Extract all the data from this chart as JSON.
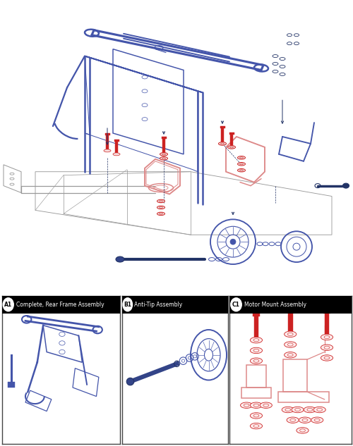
{
  "bg_color": "#ffffff",
  "blue": "#4455aa",
  "blue_light": "#6677bb",
  "red": "#cc2222",
  "salmon": "#dd8888",
  "dark_navy": "#223366",
  "gray": "#999999",
  "border_color": "#555555",
  "panel_A_label": "A1",
  "panel_A_title": "Complete, Rear Frame Assembly",
  "panel_B_label": "B1",
  "panel_B_title": "Anti-Tip Assembly",
  "panel_C_label": "C1",
  "panel_C_title": "Motor Mount Assembly",
  "figsize": [
    5.0,
    6.33
  ],
  "dpi": 100
}
